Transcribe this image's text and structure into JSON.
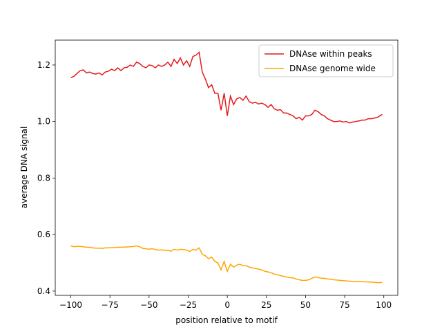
{
  "chart_data": {
    "type": "line",
    "xlabel": "position relative to motif",
    "ylabel": "average DNA signal",
    "x": [
      -100,
      -98,
      -96,
      -94,
      -92,
      -90,
      -88,
      -86,
      -84,
      -82,
      -80,
      -78,
      -76,
      -74,
      -72,
      -70,
      -68,
      -66,
      -64,
      -62,
      -60,
      -58,
      -56,
      -54,
      -52,
      -50,
      -48,
      -46,
      -44,
      -42,
      -40,
      -38,
      -36,
      -34,
      -32,
      -30,
      -28,
      -26,
      -24,
      -22,
      -20,
      -18,
      -16,
      -14,
      -12,
      -10,
      -8,
      -6,
      -4,
      -2,
      0,
      2,
      4,
      6,
      8,
      10,
      12,
      14,
      16,
      18,
      20,
      22,
      24,
      26,
      28,
      30,
      32,
      34,
      36,
      38,
      40,
      42,
      44,
      46,
      48,
      50,
      52,
      54,
      56,
      58,
      60,
      62,
      64,
      66,
      68,
      70,
      72,
      74,
      76,
      78,
      80,
      82,
      84,
      86,
      88,
      90,
      92,
      94,
      96,
      98,
      99
    ],
    "series": [
      {
        "name": "DNAse within peaks",
        "color": "#e41a1c",
        "values": [
          1.155,
          1.16,
          1.17,
          1.18,
          1.183,
          1.172,
          1.175,
          1.17,
          1.168,
          1.172,
          1.165,
          1.175,
          1.178,
          1.185,
          1.18,
          1.19,
          1.18,
          1.19,
          1.192,
          1.2,
          1.195,
          1.21,
          1.205,
          1.195,
          1.19,
          1.2,
          1.198,
          1.19,
          1.2,
          1.195,
          1.2,
          1.21,
          1.195,
          1.22,
          1.205,
          1.225,
          1.2,
          1.215,
          1.195,
          1.23,
          1.235,
          1.245,
          1.175,
          1.15,
          1.12,
          1.13,
          1.1,
          1.1,
          1.04,
          1.1,
          1.02,
          1.09,
          1.06,
          1.08,
          1.085,
          1.075,
          1.09,
          1.07,
          1.065,
          1.068,
          1.062,
          1.065,
          1.06,
          1.05,
          1.06,
          1.045,
          1.04,
          1.042,
          1.03,
          1.03,
          1.025,
          1.02,
          1.01,
          1.015,
          1.005,
          1.02,
          1.02,
          1.025,
          1.04,
          1.035,
          1.025,
          1.02,
          1.01,
          1.005,
          1.0,
          1.0,
          1.002,
          0.998,
          1.0,
          0.995,
          0.998,
          1.0,
          1.002,
          1.005,
          1.005,
          1.01,
          1.01,
          1.012,
          1.015,
          1.022,
          1.025
        ]
      },
      {
        "name": "DNAse genome wide",
        "color": "#ffa500",
        "values": [
          0.56,
          0.557,
          0.558,
          0.558,
          0.557,
          0.555,
          0.555,
          0.553,
          0.552,
          0.552,
          0.551,
          0.553,
          0.553,
          0.554,
          0.554,
          0.555,
          0.555,
          0.556,
          0.556,
          0.557,
          0.558,
          0.56,
          0.557,
          0.551,
          0.55,
          0.548,
          0.55,
          0.547,
          0.545,
          0.546,
          0.544,
          0.544,
          0.541,
          0.548,
          0.545,
          0.548,
          0.547,
          0.545,
          0.54,
          0.548,
          0.545,
          0.553,
          0.53,
          0.525,
          0.515,
          0.52,
          0.505,
          0.5,
          0.475,
          0.505,
          0.47,
          0.495,
          0.485,
          0.492,
          0.495,
          0.49,
          0.49,
          0.485,
          0.482,
          0.48,
          0.478,
          0.475,
          0.47,
          0.468,
          0.465,
          0.46,
          0.458,
          0.455,
          0.452,
          0.45,
          0.447,
          0.447,
          0.443,
          0.44,
          0.438,
          0.438,
          0.44,
          0.445,
          0.45,
          0.448,
          0.446,
          0.445,
          0.443,
          0.442,
          0.44,
          0.439,
          0.438,
          0.437,
          0.436,
          0.435,
          0.435,
          0.434,
          0.434,
          0.433,
          0.433,
          0.432,
          0.432,
          0.431,
          0.43,
          0.43,
          0.431
        ]
      }
    ],
    "xlim": [
      -109.95,
      108.95
    ],
    "ylim": [
      0.385,
      1.288
    ],
    "xticks": [
      {
        "value": -100,
        "label": "−100"
      },
      {
        "value": -75,
        "label": "−75"
      },
      {
        "value": -50,
        "label": "−50"
      },
      {
        "value": -25,
        "label": "−25"
      },
      0,
      25,
      50,
      75,
      100
    ],
    "yticks": [
      0.4,
      0.6,
      0.8,
      {
        "value": 1.0,
        "label": "1.0"
      },
      1.2
    ],
    "legend": "upper right"
  }
}
